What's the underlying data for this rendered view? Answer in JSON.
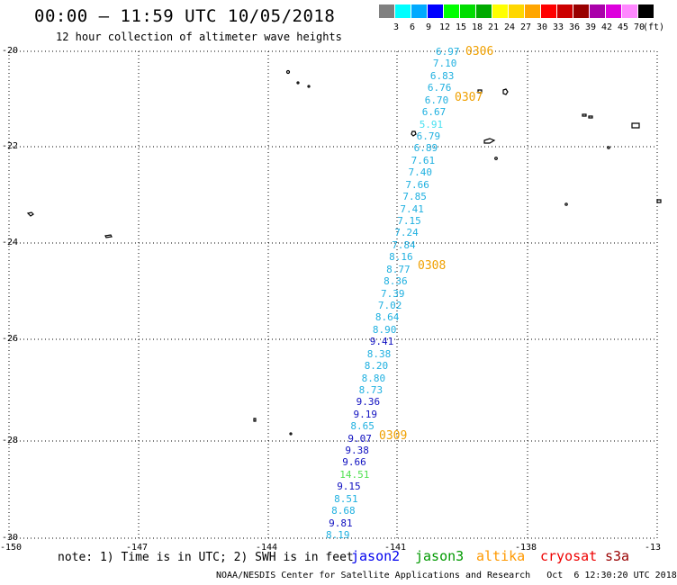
{
  "title": "00:00 – 11:59 UTC 10/05/2018",
  "subtitle": "12 hour collection of altimeter wave heights",
  "legend": {
    "unit": "(ft)",
    "swatches": [
      {
        "color": "#808080",
        "label": "3"
      },
      {
        "color": "#00ffff",
        "label": "6"
      },
      {
        "color": "#00aaff",
        "label": "9"
      },
      {
        "color": "#0000ff",
        "label": "12"
      },
      {
        "color": "#00ff00",
        "label": "15"
      },
      {
        "color": "#00dd00",
        "label": "18"
      },
      {
        "color": "#00aa00",
        "label": "21"
      },
      {
        "color": "#ffff00",
        "label": "24"
      },
      {
        "color": "#ffd700",
        "label": "27"
      },
      {
        "color": "#ffa500",
        "label": "30"
      },
      {
        "color": "#ff0000",
        "label": "33"
      },
      {
        "color": "#cc0000",
        "label": "36"
      },
      {
        "color": "#990000",
        "label": "39"
      },
      {
        "color": "#aa00aa",
        "label": "42"
      },
      {
        "color": "#dd00dd",
        "label": "45"
      },
      {
        "color": "#ff88ff",
        "label": "70"
      },
      {
        "color": "#000000",
        "label": ""
      }
    ]
  },
  "axes": {
    "lat_ticks": [
      "-20",
      "-22",
      "-24",
      "-26",
      "-28",
      "-30"
    ],
    "lon_ticks": [
      "-150",
      "-147",
      "-144",
      "-141",
      "-138",
      "-13"
    ]
  },
  "track": [
    {
      "value": "6.97",
      "color": "#1fb0e0"
    },
    {
      "value": "7.10",
      "color": "#1fb0e0"
    },
    {
      "value": "6.83",
      "color": "#1fb0e0"
    },
    {
      "value": "6.76",
      "color": "#1fb0e0"
    },
    {
      "value": "6.70",
      "color": "#1fb0e0"
    },
    {
      "value": "6.67",
      "color": "#1fb0e0"
    },
    {
      "value": "5.91",
      "color": "#44e0f0"
    },
    {
      "value": "6.79",
      "color": "#1fb0e0"
    },
    {
      "value": "6.89",
      "color": "#1fb0e0"
    },
    {
      "value": "7.61",
      "color": "#1fb0e0"
    },
    {
      "value": "7.40",
      "color": "#1fb0e0"
    },
    {
      "value": "7.66",
      "color": "#1fb0e0"
    },
    {
      "value": "7.85",
      "color": "#1fb0e0"
    },
    {
      "value": "7.41",
      "color": "#1fb0e0"
    },
    {
      "value": "7.15",
      "color": "#1fb0e0"
    },
    {
      "value": "7.24",
      "color": "#1fb0e0"
    },
    {
      "value": "7.84",
      "color": "#1fb0e0"
    },
    {
      "value": "8.16",
      "color": "#1fb0e0"
    },
    {
      "value": "8.77",
      "color": "#1fb0e0"
    },
    {
      "value": "8.36",
      "color": "#1fb0e0"
    },
    {
      "value": "7.39",
      "color": "#1fb0e0"
    },
    {
      "value": "7.02",
      "color": "#1fb0e0"
    },
    {
      "value": "8.64",
      "color": "#1fb0e0"
    },
    {
      "value": "8.90",
      "color": "#1fb0e0"
    },
    {
      "value": "9.41",
      "color": "#1010c0"
    },
    {
      "value": "8.38",
      "color": "#1fb0e0"
    },
    {
      "value": "8.20",
      "color": "#1fb0e0"
    },
    {
      "value": "8.80",
      "color": "#1fb0e0"
    },
    {
      "value": "8.73",
      "color": "#1fb0e0"
    },
    {
      "value": "9.36",
      "color": "#1010c0"
    },
    {
      "value": "9.19",
      "color": "#1010c0"
    },
    {
      "value": "8.65",
      "color": "#1fb0e0"
    },
    {
      "value": "9.07",
      "color": "#1010c0"
    },
    {
      "value": "9.38",
      "color": "#1010c0"
    },
    {
      "value": "9.66",
      "color": "#1010c0"
    },
    {
      "value": "14.51",
      "color": "#50e050"
    },
    {
      "value": "9.15",
      "color": "#1010c0"
    },
    {
      "value": "8.51",
      "color": "#1fb0e0"
    },
    {
      "value": "8.68",
      "color": "#1fb0e0"
    },
    {
      "value": "9.81",
      "color": "#1010c0"
    },
    {
      "value": "8.19",
      "color": "#1fb0e0"
    }
  ],
  "time_marks": [
    "0306",
    "0307",
    "0308",
    "0309"
  ],
  "note": "note: 1) Time is in UTC; 2) SWH is in feet",
  "satellites": [
    {
      "name": "jason2",
      "color": "#0000ee"
    },
    {
      "name": "jason3",
      "color": "#009900"
    },
    {
      "name": "altika",
      "color": "#ff9900"
    },
    {
      "name": "cryosat",
      "color": "#ee0000"
    },
    {
      "name": "s3a",
      "color": "#990000"
    }
  ],
  "footer": "NOAA/NESDIS Center for Satellite Applications and Research   Oct  6 12:30:20 UTC 2018"
}
